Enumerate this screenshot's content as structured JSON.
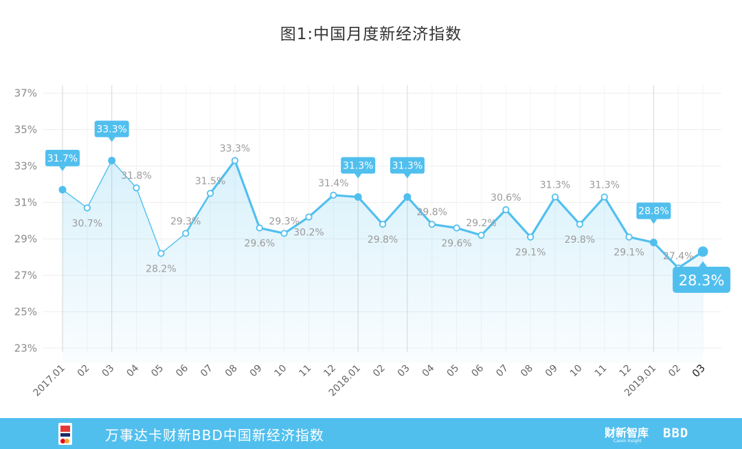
{
  "chart_data": {
    "type": "line",
    "title": "图1:中国月度新经济指数",
    "categories": [
      "2017.01",
      "02",
      "03",
      "04",
      "05",
      "06",
      "07",
      "08",
      "09",
      "10",
      "11",
      "12",
      "2018.01",
      "02",
      "03",
      "04",
      "05",
      "06",
      "07",
      "08",
      "09",
      "10",
      "11",
      "12",
      "2019.01",
      "02",
      "03"
    ],
    "values": [
      31.7,
      30.7,
      33.3,
      31.8,
      28.2,
      29.3,
      31.5,
      33.3,
      29.6,
      29.3,
      30.2,
      31.4,
      31.3,
      29.8,
      31.3,
      29.8,
      29.6,
      29.2,
      30.6,
      29.1,
      31.3,
      29.8,
      31.3,
      29.1,
      28.8,
      27.4,
      28.3
    ],
    "data_labels": [
      "31.7%",
      "30.7%",
      "33.3%",
      "31.8%",
      "28.2%",
      "29.3%",
      "31.5%",
      "33.3%",
      "29.6%",
      "29.3%",
      "30.2%",
      "31.4%",
      "31.3%",
      "29.8%",
      "31.3%",
      "29.8%",
      "29.6%",
      "29.2%",
      "30.6%",
      "29.1%",
      "31.3%",
      "29.8%",
      "31.3%",
      "29.1%",
      "28.8%",
      "27.4%",
      "28.3%"
    ],
    "y_ticks": [
      "23%",
      "25%",
      "27%",
      "29%",
      "31%",
      "33%",
      "35%",
      "37%"
    ],
    "y_tick_values": [
      23,
      25,
      27,
      29,
      31,
      33,
      35,
      37
    ],
    "ylim": [
      22.2,
      38
    ],
    "highlighted_points": [
      "2017.01",
      "2018.01",
      "2019.01",
      "03"
    ],
    "grid": true,
    "colors": {
      "line": "#51bfee",
      "area": "#e6f5fc",
      "callout": "#51bfee",
      "grid": "#eeeeee"
    }
  },
  "footer": {
    "title": "万事达卡财新BBD中国新经济指数",
    "brand_cn": "财新智库",
    "brand_en": "Caixin Insight",
    "brand_bbd": "BBD",
    "logo_icon": "mastercard-caixin-logo"
  }
}
